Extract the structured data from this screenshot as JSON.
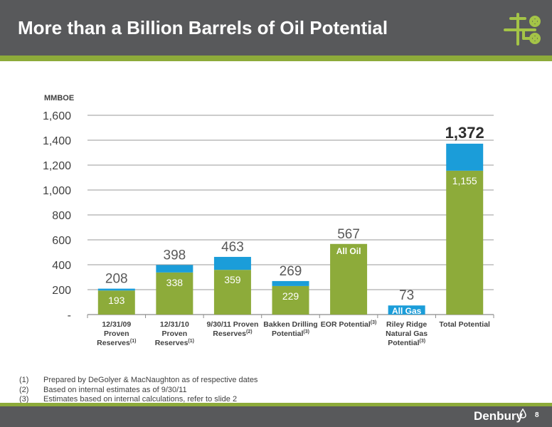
{
  "header": {
    "title": "More than a Billion Barrels of Oil Potential"
  },
  "colors": {
    "green": "#8dab3a",
    "blue": "#1b9dd9",
    "header_gray": "#58595b"
  },
  "chart_data": {
    "type": "bar",
    "ylabel": "MMBOE",
    "ylim": [
      0,
      1600
    ],
    "yticks": [
      0,
      200,
      400,
      600,
      800,
      1000,
      1200,
      1400,
      1600
    ],
    "ytick_labels": [
      "-",
      "200",
      "400",
      "600",
      "800",
      "1,000",
      "1,200",
      "1,400",
      "1,600"
    ],
    "grid": true,
    "categories": [
      {
        "lines": [
          "12/31/09",
          "Proven",
          "Reserves"
        ],
        "sup": "(1)"
      },
      {
        "lines": [
          "12/31/10",
          "Proven",
          "Reserves"
        ],
        "sup": "(1)"
      },
      {
        "lines": [
          "9/30/11 Proven",
          "Reserves"
        ],
        "sup": "(2)"
      },
      {
        "lines": [
          "Bakken Drilling",
          "Potential"
        ],
        "sup": "(3)"
      },
      {
        "lines": [
          "EOR Potential"
        ],
        "sup": "(3)"
      },
      {
        "lines": [
          "Riley Ridge",
          "Natural Gas",
          "Potential"
        ],
        "sup": "(3)"
      },
      {
        "lines": [
          "Total Potential"
        ],
        "sup": ""
      }
    ],
    "series": [
      {
        "name": "Oil",
        "color": "#8dab3a",
        "values": [
          193,
          338,
          359,
          229,
          567,
          0,
          1155
        ]
      },
      {
        "name": "Gas",
        "color": "#1b9dd9",
        "values": [
          15,
          60,
          104,
          40,
          0,
          73,
          217
        ]
      }
    ],
    "total_labels": [
      "208",
      "398",
      "463",
      "269",
      "567",
      "73",
      "1,372"
    ],
    "inner_labels": [
      "193",
      "338",
      "359",
      "229",
      "All Oil",
      "All Gas",
      "1,155"
    ]
  },
  "footnotes": [
    {
      "num": "(1)",
      "text": "Prepared by DeGolyer & MacNaughton as of respective dates"
    },
    {
      "num": "(2)",
      "text": "Based on internal estimates as of 9/30/11"
    },
    {
      "num": "(3)",
      "text": "Estimates based on internal calculations, refer to slide 2"
    }
  ],
  "footer": {
    "brand": "Denbury",
    "page_number": "8"
  }
}
